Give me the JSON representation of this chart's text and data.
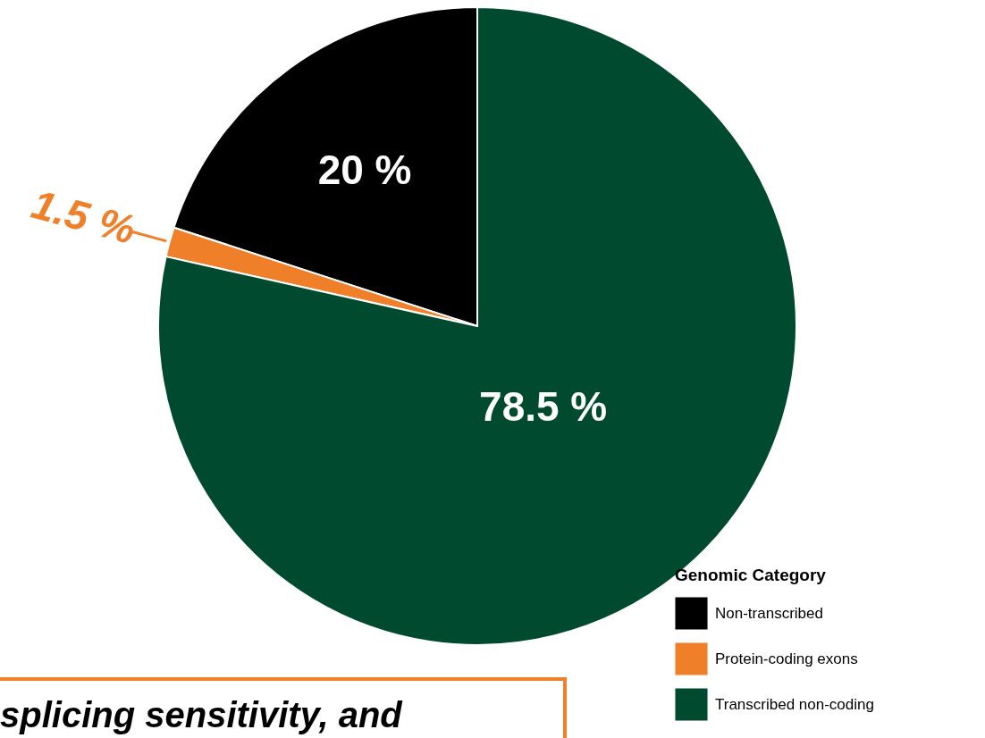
{
  "chart_data": {
    "type": "pie",
    "categories": [
      "Non-transcribed",
      "Protein-coding exons",
      "Transcribed non-coding"
    ],
    "values": [
      20,
      1.5,
      78.5
    ],
    "colors": [
      "#000000",
      "#f07f2a",
      "#004b30"
    ],
    "value_labels": [
      "20 %",
      "1.5 %",
      "78.5 %"
    ],
    "legend_title": "Genomic Category",
    "legend": "bottom right",
    "annotations": [
      "splicing sensitivity, and"
    ]
  }
}
